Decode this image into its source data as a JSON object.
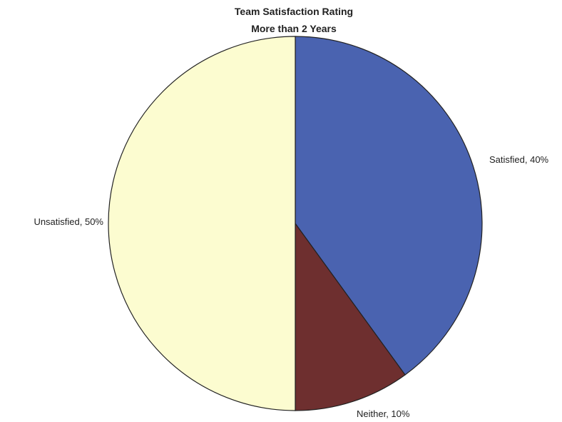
{
  "chart_data": {
    "type": "pie",
    "title": "Team Satisfaction Rating",
    "subtitle": "More than 2 Years",
    "slices": [
      {
        "label": "Satisfied, 40%",
        "value": 40,
        "color": "#4a63b0"
      },
      {
        "label": "Neither, 10%",
        "value": 10,
        "color": "#6e2f2f"
      },
      {
        "label": "Unsatisfied, 50%",
        "value": 50,
        "color": "#fcfcd0"
      }
    ],
    "start_angle": "12 o'clock",
    "direction": "clockwise",
    "legend": "none"
  }
}
